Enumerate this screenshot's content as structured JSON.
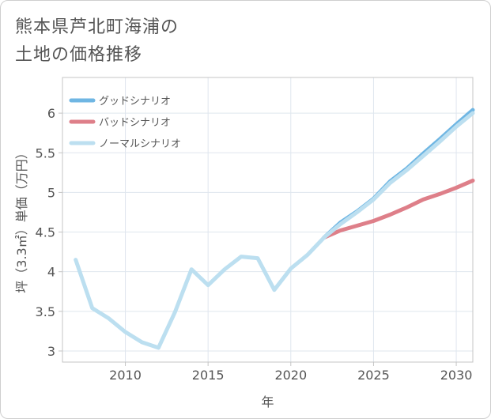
{
  "title_line1": "熊本県芦北町海浦の",
  "title_line2": "土地の価格推移",
  "chart_data": {
    "type": "line",
    "xlabel": "年",
    "ylabel": "坪（3.3㎡）単価（万円）",
    "xlim": [
      2006.2,
      2031
    ],
    "ylim": [
      2.86,
      6.45
    ],
    "xticks": [
      2010,
      2015,
      2020,
      2025,
      2030
    ],
    "xtick_labels": [
      "2010",
      "2015",
      "2020",
      "2025",
      "2030"
    ],
    "yticks": [
      3,
      3.5,
      4,
      4.5,
      5,
      5.5,
      6
    ],
    "ytick_labels": [
      "3",
      "3.5",
      "4",
      "4.5",
      "5",
      "5.5",
      "6"
    ],
    "grid": true,
    "legend_position": "top-left",
    "series": [
      {
        "name": "グッドシナリオ",
        "color": "#6fb6e3",
        "x": [
          2022,
          2023,
          2024,
          2025,
          2026,
          2027,
          2028,
          2029,
          2030,
          2031
        ],
        "y": [
          4.43,
          4.62,
          4.76,
          4.92,
          5.14,
          5.3,
          5.49,
          5.67,
          5.86,
          6.04
        ]
      },
      {
        "name": "バッドシナリオ",
        "color": "#de7f89",
        "x": [
          2022,
          2023,
          2024,
          2025,
          2026,
          2027,
          2028,
          2029,
          2030,
          2031
        ],
        "y": [
          4.43,
          4.52,
          4.58,
          4.64,
          4.72,
          4.81,
          4.91,
          4.98,
          5.06,
          5.15
        ]
      },
      {
        "name": "ノーマルシナリオ",
        "color": "#bcdff0",
        "x": [
          2007,
          2008,
          2009,
          2010,
          2011,
          2012,
          2013,
          2014,
          2015,
          2016,
          2017,
          2018,
          2019,
          2020,
          2021,
          2022,
          2023,
          2024,
          2025,
          2026,
          2027,
          2028,
          2029,
          2030,
          2031
        ],
        "y": [
          4.15,
          3.54,
          3.41,
          3.24,
          3.11,
          3.04,
          3.49,
          4.03,
          3.83,
          4.03,
          4.19,
          4.17,
          3.77,
          4.04,
          4.21,
          4.43,
          4.6,
          4.75,
          4.91,
          5.12,
          5.28,
          5.46,
          5.64,
          5.83,
          6.0
        ]
      }
    ]
  }
}
